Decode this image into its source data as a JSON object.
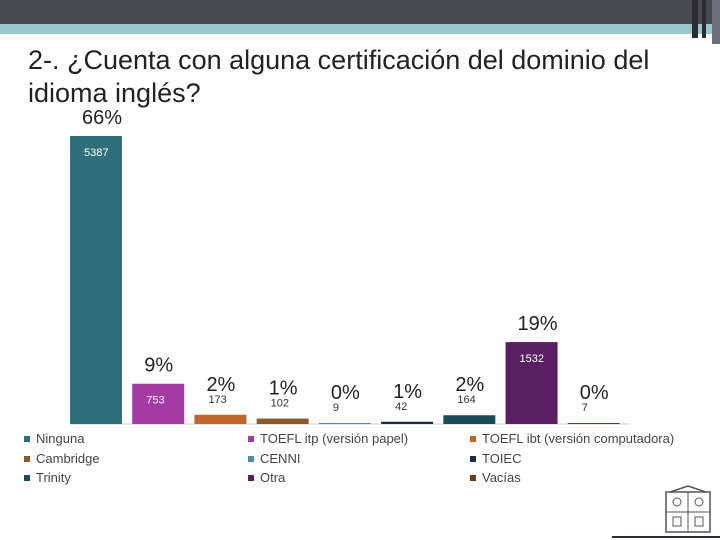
{
  "slide": {
    "title": "2-. ¿Cuenta con alguna certificación del dominio del idioma inglés?"
  },
  "chart_data": {
    "type": "bar",
    "title": "",
    "xlabel": "",
    "ylabel": "",
    "ylim": [
      0,
      5387
    ],
    "grid": false,
    "legend_position": "bottom",
    "series": [
      {
        "name": "Ninguna",
        "values": [
          5387
        ],
        "labels": [
          "5387"
        ],
        "percent": "66%",
        "color": "#2f6f79"
      },
      {
        "name": "TOEFL itp (versión papel)",
        "values": [
          753
        ],
        "labels": [
          "753"
        ],
        "percent": "9%",
        "color": "#a43ba5"
      },
      {
        "name": "TOEFL ibt (versión computadora)",
        "values": [
          173
        ],
        "labels": [
          "173"
        ],
        "percent": "2%",
        "color": "#c0662a"
      },
      {
        "name": "Cambridge",
        "values": [
          102
        ],
        "labels": [
          "102"
        ],
        "percent": "1%",
        "color": "#8a5a2e"
      },
      {
        "name": "CENNI",
        "values": [
          9
        ],
        "labels": [
          "9"
        ],
        "percent": "0%",
        "color": "#4f8fa3"
      },
      {
        "name": "TOIEC",
        "values": [
          42
        ],
        "labels": [
          "42"
        ],
        "percent": "1%",
        "color": "#1f2a44"
      },
      {
        "name": "Trinity",
        "values": [
          164
        ],
        "labels": [
          "164"
        ],
        "percent": "2%",
        "color": "#1d4b57"
      },
      {
        "name": "Otra",
        "values": [
          1532
        ],
        "labels": [
          "1532"
        ],
        "percent": "19%",
        "color": "#5a1e63"
      },
      {
        "name": "Vacías",
        "values": [
          7
        ],
        "labels": [
          "7"
        ],
        "percent": "0%",
        "color": "#6b3b1d"
      }
    ],
    "legend_order": [
      "Ninguna",
      "TOEFL itp (versión papel)",
      "TOEFL ibt (versión computadora)",
      "Cambridge",
      "CENNI",
      "TOIEC",
      "Trinity",
      "Otra",
      "Vacías"
    ]
  }
}
